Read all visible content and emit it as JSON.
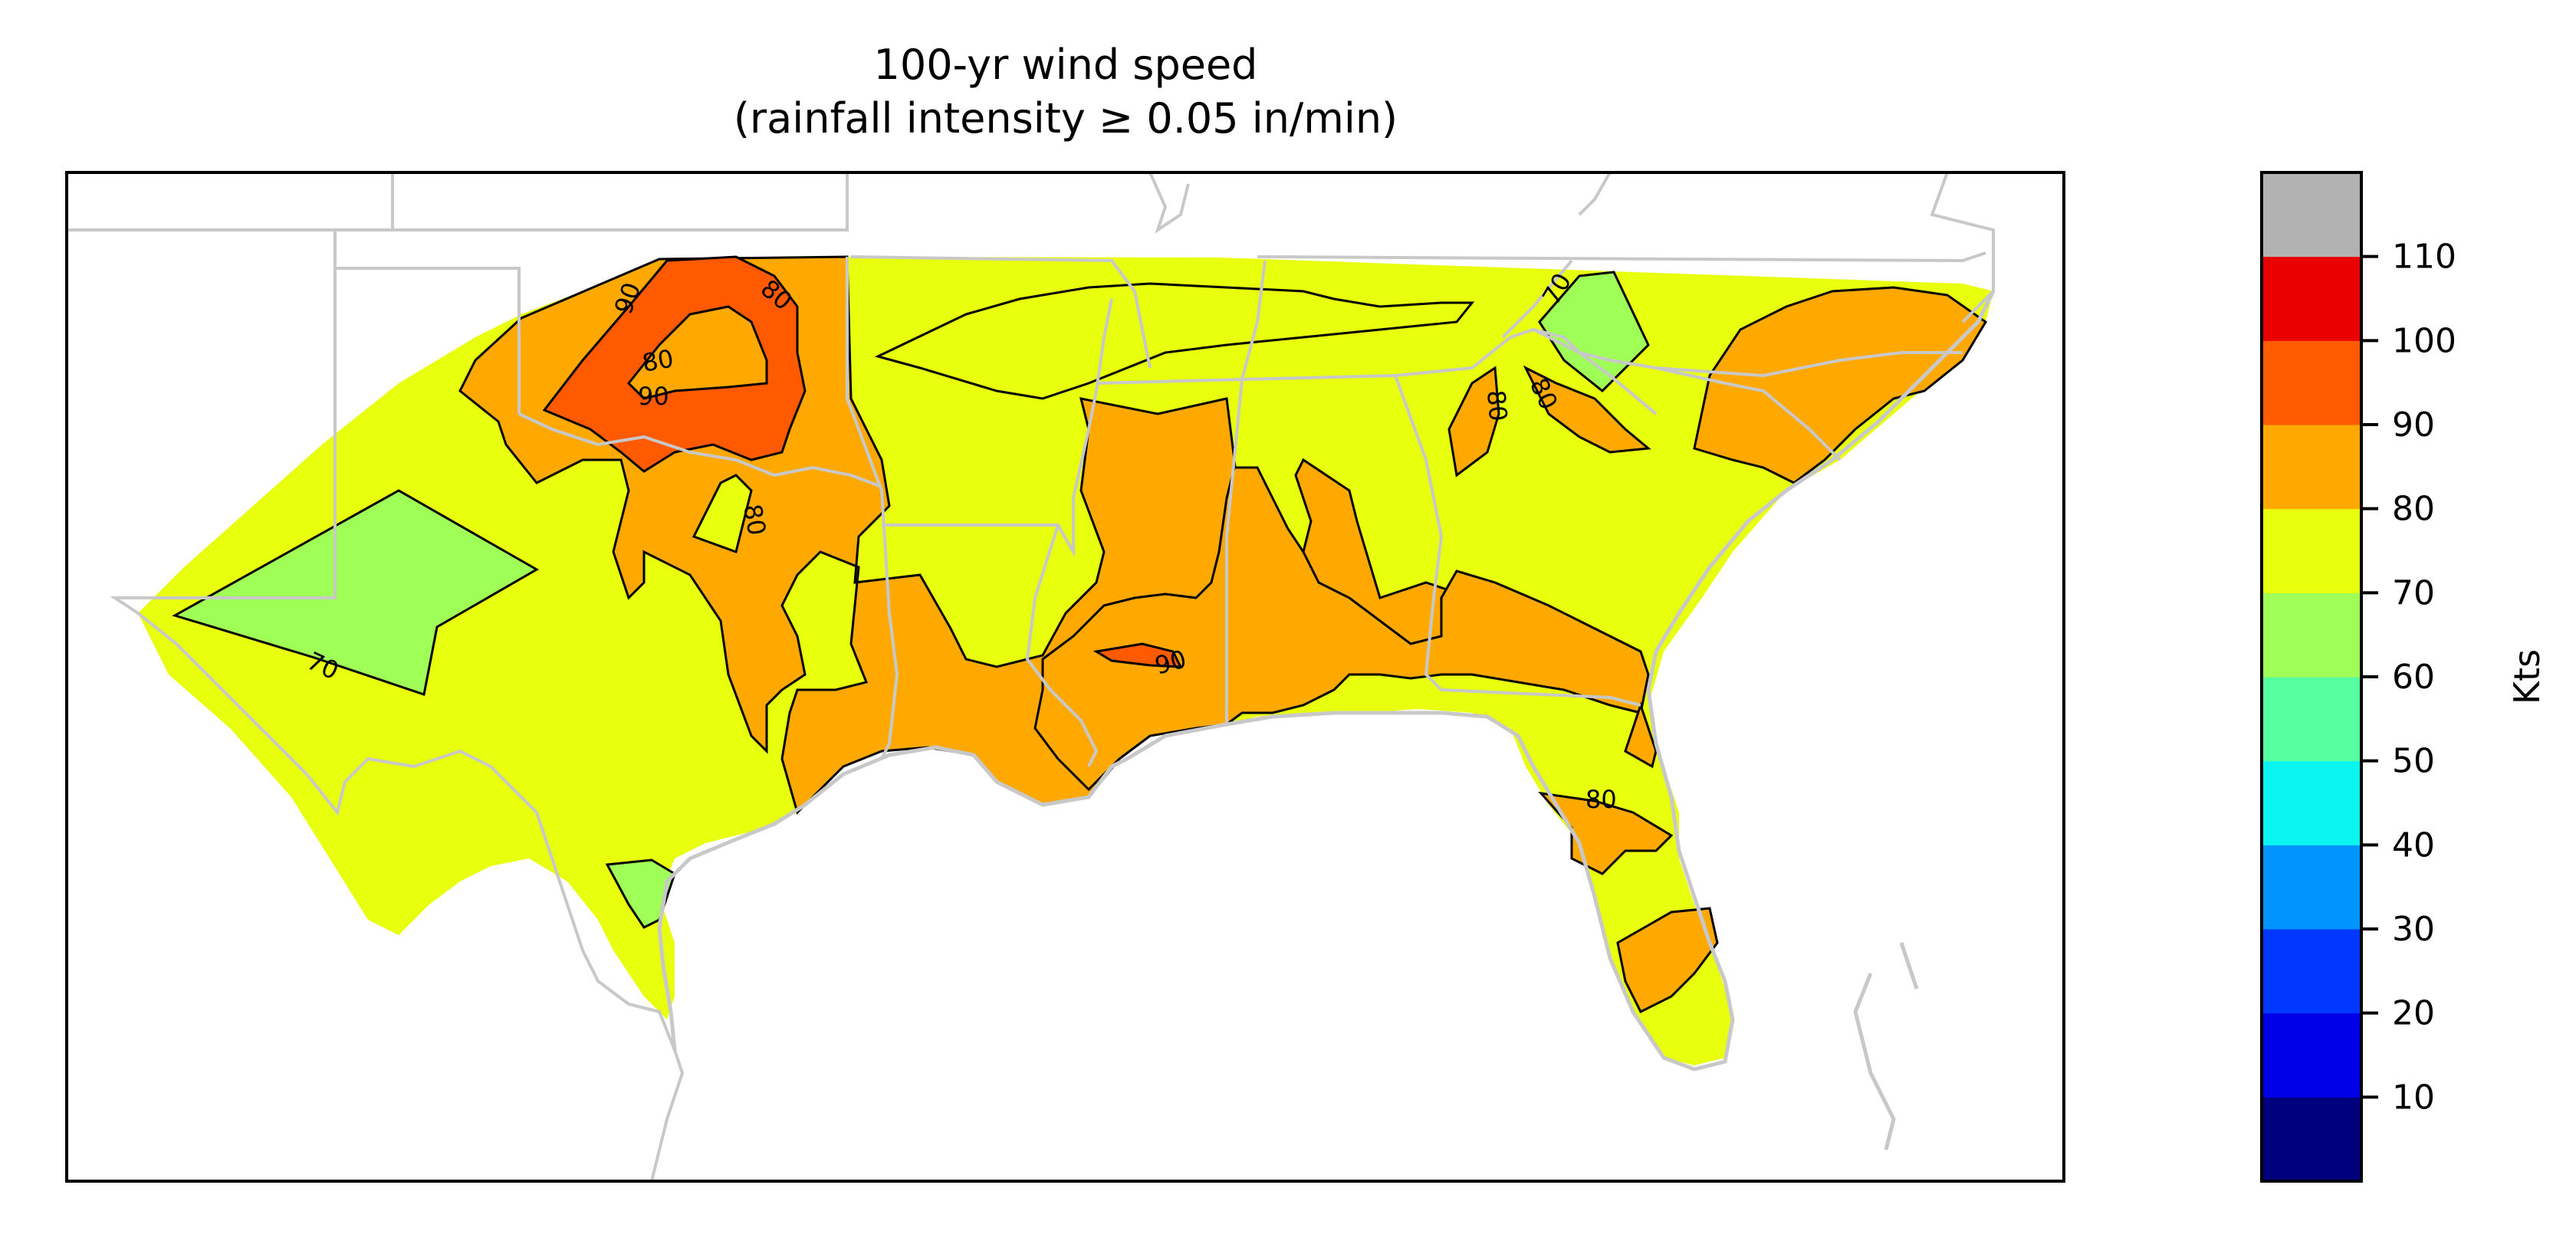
{
  "title": {
    "line1": "100-yr wind speed",
    "line2": "(rainfall intensity ≥ 0.05 in/min)"
  },
  "colorbar": {
    "label": "Kts",
    "ticks": [
      "10",
      "20",
      "30",
      "40",
      "50",
      "60",
      "70",
      "80",
      "90",
      "100",
      "110"
    ],
    "bins": [
      {
        "range": "0-10",
        "color": "#00007f"
      },
      {
        "range": "10-20",
        "color": "#0000e8"
      },
      {
        "range": "20-30",
        "color": "#0038ff"
      },
      {
        "range": "30-40",
        "color": "#0094ff"
      },
      {
        "range": "40-50",
        "color": "#0af4f0"
      },
      {
        "range": "50-60",
        "color": "#56ffa0"
      },
      {
        "range": "60-70",
        "color": "#a0ff56"
      },
      {
        "range": "70-80",
        "color": "#e8ff0d"
      },
      {
        "range": "80-90",
        "color": "#ffa800"
      },
      {
        "range": "90-100",
        "color": "#ff5a00"
      },
      {
        "range": "100-110",
        "color": "#ea0000"
      },
      {
        "range": ">110",
        "color": "#b2b2b2"
      }
    ]
  },
  "contour_labels": [
    {
      "text": "90"
    },
    {
      "text": "80"
    },
    {
      "text": "80"
    },
    {
      "text": "90"
    },
    {
      "text": "80"
    },
    {
      "text": "70"
    },
    {
      "text": "90"
    },
    {
      "text": "70"
    },
    {
      "text": "80"
    },
    {
      "text": "80"
    },
    {
      "text": "80"
    }
  ]
}
